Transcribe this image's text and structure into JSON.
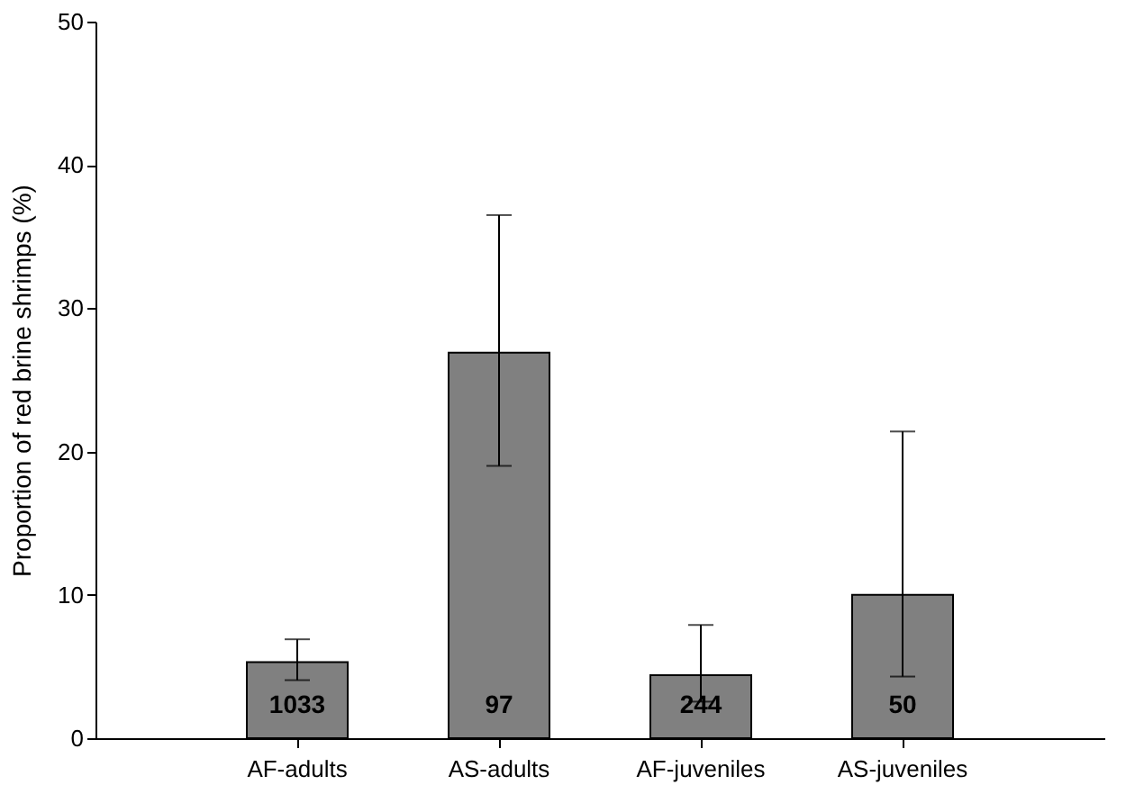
{
  "chart_data": {
    "type": "bar",
    "ylabel": "Proportion of red brine shrimps (%)",
    "categories": [
      "AF-adults",
      "AS-adults",
      "AF-juveniles",
      "AS-juveniles"
    ],
    "values": [
      5.3,
      26.9,
      4.4,
      10.0
    ],
    "errors": [
      [
        4.05,
        6.9
      ],
      [
        19.0,
        36.5
      ],
      [
        2.55,
        7.9
      ],
      [
        4.3,
        21.4
      ]
    ],
    "color": "#808080",
    "ylim": [
      0,
      50
    ],
    "yticks": [
      0,
      10,
      20,
      30,
      40,
      50
    ],
    "grid": false,
    "annotations": [
      "1033",
      "97",
      "244",
      "50"
    ]
  }
}
